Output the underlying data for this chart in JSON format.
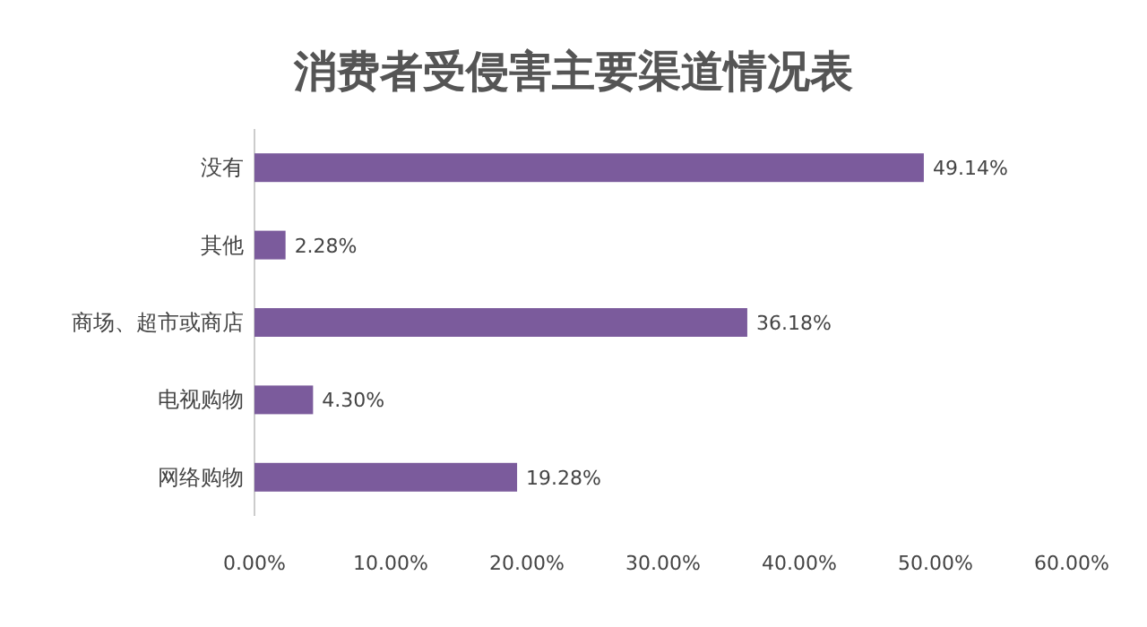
{
  "chart_data": {
    "type": "bar",
    "orientation": "horizontal",
    "title": "消费者受侵害主要渠道情况表",
    "categories": [
      "没有",
      "其他",
      "商场、超市或商店",
      "电视购物",
      "网络购物"
    ],
    "values": [
      49.14,
      2.28,
      36.18,
      4.3,
      19.28
    ],
    "value_labels": [
      "49.14%",
      "2.28%",
      "36.18%",
      "4.30%",
      "19.28%"
    ],
    "color": "#7b5b9c",
    "xlim": [
      0,
      60
    ],
    "xticks": [
      {
        "value": 0,
        "label": "0.00%"
      },
      {
        "value": 10,
        "label": "10.00%"
      },
      {
        "value": 20,
        "label": "20.00%"
      },
      {
        "value": 30,
        "label": "30.00%"
      },
      {
        "value": 40,
        "label": "40.00%"
      },
      {
        "value": 50,
        "label": "50.00%"
      },
      {
        "value": 60,
        "label": "60.00%"
      }
    ],
    "grid": false
  }
}
